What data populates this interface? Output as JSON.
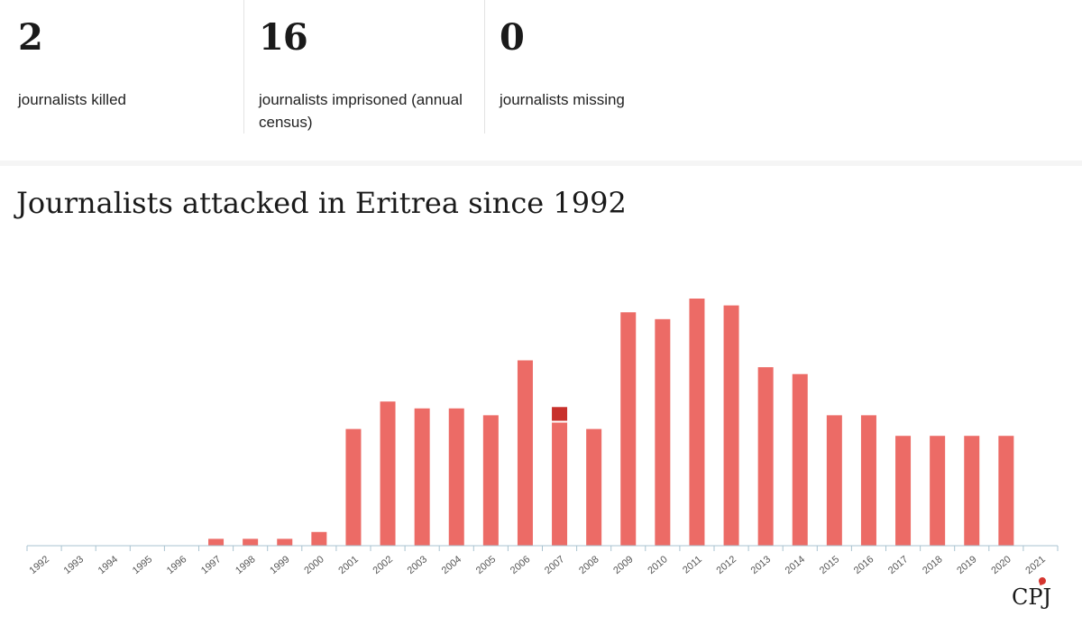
{
  "stats": [
    {
      "value": "2",
      "label": "journalists killed"
    },
    {
      "value": "16",
      "label": "journalists imprisoned (annual census)"
    },
    {
      "value": "0",
      "label": "journalists missing"
    }
  ],
  "chart_data": {
    "type": "bar",
    "title": "Journalists attacked in Eritrea since 1992",
    "xlabel": "",
    "ylabel": "",
    "categories": [
      "1992",
      "1993",
      "1994",
      "1995",
      "1996",
      "1997",
      "1998",
      "1999",
      "2000",
      "2001",
      "2002",
      "2003",
      "2004",
      "2005",
      "2006",
      "2007",
      "2008",
      "2009",
      "2010",
      "2011",
      "2012",
      "2013",
      "2014",
      "2015",
      "2016",
      "2017",
      "2018",
      "2019",
      "2020",
      "2021"
    ],
    "series": [
      {
        "values": [
          0,
          0,
          0,
          0,
          0,
          1,
          1,
          1,
          2,
          17,
          21,
          20,
          20,
          19,
          27,
          18,
          17,
          34,
          33,
          36,
          35,
          26,
          25,
          19,
          19,
          16,
          16,
          16,
          16,
          0
        ],
        "color": "#ec6b66"
      },
      {
        "values": [
          0,
          0,
          0,
          0,
          0,
          0,
          0,
          0,
          0,
          0,
          0,
          0,
          0,
          0,
          0,
          2,
          0,
          0,
          0,
          0,
          0,
          0,
          0,
          0,
          0,
          0,
          0,
          0,
          0,
          0
        ],
        "color": "#c8302b"
      }
    ],
    "ylim": [
      0,
      36
    ],
    "grid": false,
    "colors": {
      "bar": "#ec6b66",
      "highlight": "#c8302b",
      "axis": "#a9c3d0",
      "tick_label": "#555555"
    }
  },
  "logo": {
    "text": "CPJ"
  }
}
